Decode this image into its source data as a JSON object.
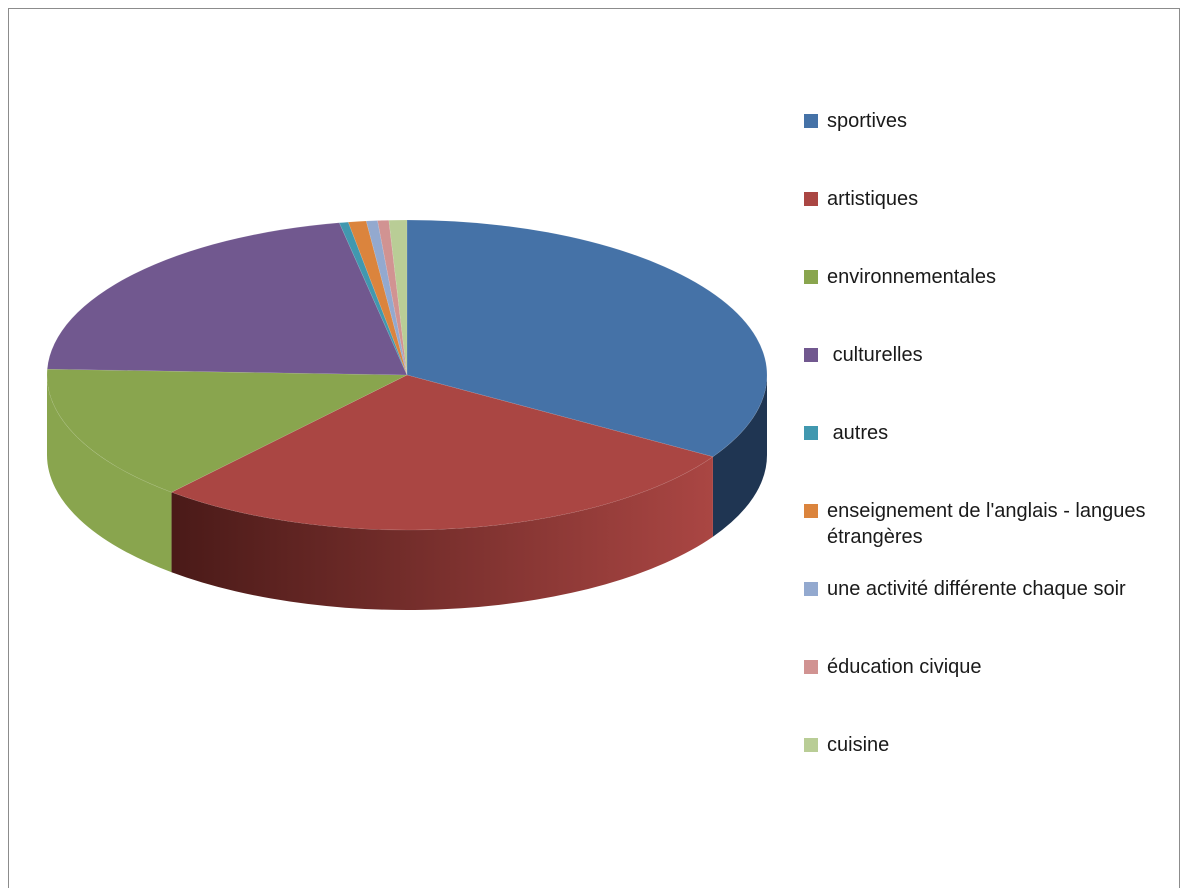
{
  "chart_data": {
    "type": "pie",
    "title": "",
    "legend_position": "right",
    "categories": [
      "sportives",
      "artistiques",
      "environnementales",
      " culturelles",
      " autres",
      "enseignement de l'anglais - langues étrangères",
      "une activité différente chaque soir",
      "éducation civique",
      "cuisine"
    ],
    "values": [
      33.7,
      27.4,
      14.2,
      21.3,
      0.4,
      0.8,
      0.5,
      0.5,
      0.8
    ],
    "colors": [
      "#4572a7",
      "#aa4643",
      "#89a54e",
      "#71588f",
      "#4198af",
      "#db843d",
      "#93a9cf",
      "#d19392",
      "#b9cd96"
    ],
    "dark_colors": [
      "#1f3552",
      "#4a1a18",
      "#5e7a33",
      "#3d2a55",
      "#1e5f70",
      "#8a4e1e",
      "#5a6f93",
      "#8c5250",
      "#7f9160"
    ]
  }
}
